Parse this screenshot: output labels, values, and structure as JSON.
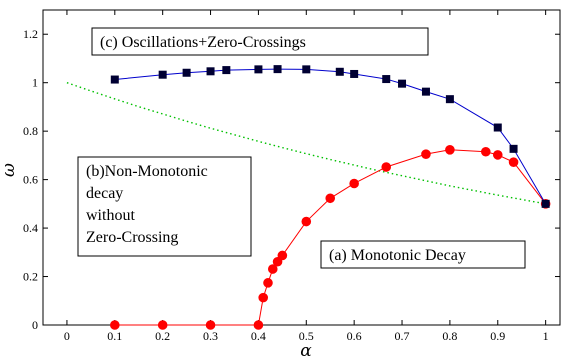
{
  "chart_data": {
    "type": "line",
    "xlabel": "α",
    "ylabel": "ω",
    "xlim": [
      -0.05,
      1.03
    ],
    "ylim": [
      0,
      1.3
    ],
    "x_ticks": [
      "0",
      "0.1",
      "0.2",
      "0.3",
      "0.4",
      "0.5",
      "0.6",
      "0.7",
      "0.8",
      "0.9",
      "1"
    ],
    "x_tick_values": [
      0,
      0.1,
      0.2,
      0.3,
      0.4,
      0.5,
      0.6,
      0.7,
      0.8,
      0.9,
      1.0
    ],
    "y_ticks": [
      "0",
      "0.2",
      "0.4",
      "0.6",
      "0.8",
      "1",
      "1.2"
    ],
    "y_tick_values": [
      0,
      0.2,
      0.4,
      0.6,
      0.8,
      1.0,
      1.2
    ],
    "grid": false,
    "colors": {
      "blue_line": "#0000cc",
      "square_marker": "#000033",
      "red": "#ff0000",
      "green_dotted": "#00c000"
    },
    "series": [
      {
        "style": "blue line with black square markers",
        "x": [
          0.1,
          0.2,
          0.25,
          0.3,
          0.333,
          0.4,
          0.44,
          0.5,
          0.57,
          0.6,
          0.667,
          0.7,
          0.75,
          0.8,
          0.9,
          0.933,
          1.0
        ],
        "y": [
          1.013,
          1.033,
          1.041,
          1.047,
          1.052,
          1.055,
          1.056,
          1.055,
          1.045,
          1.036,
          1.015,
          0.996,
          0.963,
          0.932,
          0.815,
          0.727,
          0.5
        ]
      },
      {
        "style": "red line with circle markers",
        "x": [
          0.1,
          0.2,
          0.3,
          0.4,
          0.41,
          0.42,
          0.43,
          0.44,
          0.45,
          0.5,
          0.55,
          0.6,
          0.667,
          0.75,
          0.8,
          0.875,
          0.9,
          0.933,
          1.0
        ],
        "y": [
          0,
          0,
          0,
          0,
          0.113,
          0.174,
          0.231,
          0.261,
          0.287,
          0.427,
          0.523,
          0.584,
          0.652,
          0.705,
          0.723,
          0.715,
          0.702,
          0.672,
          0.5
        ]
      },
      {
        "style": "green dotted curve",
        "x": [
          0,
          0.05,
          0.1,
          0.15,
          0.2,
          0.25,
          0.3,
          0.35,
          0.4,
          0.45,
          0.5,
          0.55,
          0.6,
          0.65,
          0.7,
          0.75,
          0.8,
          0.85,
          0.9,
          0.95,
          1.0
        ],
        "y": [
          1.0,
          0.966,
          0.933,
          0.901,
          0.871,
          0.841,
          0.812,
          0.785,
          0.758,
          0.732,
          0.707,
          0.683,
          0.66,
          0.637,
          0.616,
          0.595,
          0.574,
          0.555,
          0.536,
          0.518,
          0.5
        ]
      }
    ],
    "annotations": [
      {
        "key": "c",
        "lines": [
          "(c) Oscillations+Zero-Crossings"
        ]
      },
      {
        "key": "b",
        "lines": [
          "(b)Non-Monotonic",
          "decay",
          "without",
          "Zero-Crossing"
        ]
      },
      {
        "key": "a",
        "lines": [
          "(a) Monotonic Decay"
        ]
      }
    ]
  }
}
